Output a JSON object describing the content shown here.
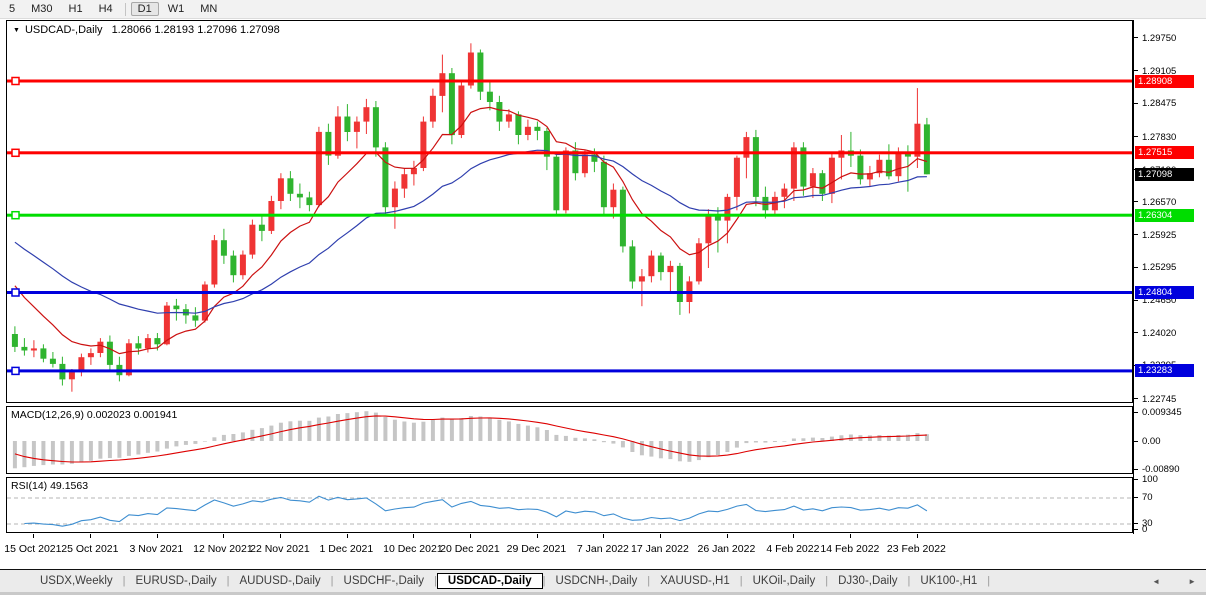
{
  "toolbar": {
    "timeframes": [
      "5",
      "M30",
      "H1",
      "H4",
      "D1",
      "W1",
      "MN"
    ],
    "active": "D1"
  },
  "chart": {
    "title_symbol": "USDCAD-,Daily",
    "title_ohlc": "1.28066 1.28193 1.27096 1.27098",
    "dropdown_icon": "▼"
  },
  "chart_data": {
    "type": "candlestick",
    "symbol": "USDCAD",
    "timeframe": "Daily",
    "candle_bull_color": "#ef3434",
    "candle_bear_color": "#2fb42f",
    "ohlc": [
      [
        1.24,
        1.2415,
        1.2365,
        1.2375
      ],
      [
        1.2375,
        1.2392,
        1.2358,
        1.2368
      ],
      [
        1.2368,
        1.2388,
        1.2355,
        1.2372
      ],
      [
        1.2372,
        1.238,
        1.2345,
        1.2352
      ],
      [
        1.2352,
        1.2365,
        1.2335,
        1.2342
      ],
      [
        1.2342,
        1.2356,
        1.23,
        1.2312
      ],
      [
        1.2312,
        1.2332,
        1.2288,
        1.2326
      ],
      [
        1.2326,
        1.2362,
        1.2318,
        1.2355
      ],
      [
        1.2355,
        1.2372,
        1.234,
        1.2363
      ],
      [
        1.2363,
        1.2392,
        1.2355,
        1.2385
      ],
      [
        1.2385,
        1.2397,
        1.233,
        1.234
      ],
      [
        1.234,
        1.2356,
        1.2308,
        1.232
      ],
      [
        1.232,
        1.239,
        1.2318,
        1.2382
      ],
      [
        1.2382,
        1.2396,
        1.236,
        1.2372
      ],
      [
        1.2372,
        1.24,
        1.2364,
        1.2392
      ],
      [
        1.2392,
        1.2402,
        1.2368,
        1.238
      ],
      [
        1.238,
        1.2462,
        1.2378,
        1.2455
      ],
      [
        1.2455,
        1.2468,
        1.2426,
        1.2448
      ],
      [
        1.2448,
        1.2458,
        1.242,
        1.2436
      ],
      [
        1.2436,
        1.2452,
        1.2414,
        1.2426
      ],
      [
        1.2426,
        1.2502,
        1.2422,
        1.2496
      ],
      [
        1.2496,
        1.2592,
        1.249,
        1.2582
      ],
      [
        1.2582,
        1.2604,
        1.2536,
        1.2552
      ],
      [
        1.2552,
        1.2562,
        1.25,
        1.2514
      ],
      [
        1.2514,
        1.2562,
        1.2506,
        1.2554
      ],
      [
        1.2554,
        1.2622,
        1.2546,
        1.2612
      ],
      [
        1.2612,
        1.2628,
        1.258,
        1.26
      ],
      [
        1.26,
        1.2668,
        1.2594,
        1.2658
      ],
      [
        1.2658,
        1.2712,
        1.2642,
        1.2702
      ],
      [
        1.2702,
        1.2716,
        1.2658,
        1.2672
      ],
      [
        1.2672,
        1.2692,
        1.2644,
        1.2665
      ],
      [
        1.2665,
        1.2676,
        1.2638,
        1.265
      ],
      [
        1.265,
        1.2802,
        1.2646,
        1.2792
      ],
      [
        1.2792,
        1.2808,
        1.2728,
        1.2746
      ],
      [
        1.2746,
        1.2842,
        1.274,
        1.2822
      ],
      [
        1.2822,
        1.2846,
        1.2774,
        1.2792
      ],
      [
        1.2792,
        1.2822,
        1.276,
        1.2812
      ],
      [
        1.2812,
        1.2856,
        1.2788,
        1.284
      ],
      [
        1.284,
        1.2852,
        1.2744,
        1.2762
      ],
      [
        1.2762,
        1.2772,
        1.2628,
        1.2646
      ],
      [
        1.2646,
        1.2696,
        1.2604,
        1.2682
      ],
      [
        1.2682,
        1.2722,
        1.2664,
        1.271
      ],
      [
        1.271,
        1.2736,
        1.2688,
        1.2722
      ],
      [
        1.2722,
        1.2822,
        1.2716,
        1.2812
      ],
      [
        1.2812,
        1.2876,
        1.28,
        1.2862
      ],
      [
        1.2862,
        1.2942,
        1.283,
        1.2906
      ],
      [
        1.2906,
        1.2916,
        1.2768,
        1.2786
      ],
      [
        1.2786,
        1.2892,
        1.278,
        1.2882
      ],
      [
        1.2882,
        1.2964,
        1.2876,
        1.2946
      ],
      [
        1.2946,
        1.2952,
        1.2854,
        1.287
      ],
      [
        1.287,
        1.289,
        1.2834,
        1.285
      ],
      [
        1.285,
        1.2862,
        1.2794,
        1.2812
      ],
      [
        1.2812,
        1.2836,
        1.28,
        1.2826
      ],
      [
        1.2826,
        1.2832,
        1.2768,
        1.2786
      ],
      [
        1.2786,
        1.2816,
        1.2776,
        1.2802
      ],
      [
        1.2802,
        1.2812,
        1.2776,
        1.2794
      ],
      [
        1.2794,
        1.28,
        1.2718,
        1.2744
      ],
      [
        1.2744,
        1.2754,
        1.2628,
        1.264
      ],
      [
        1.264,
        1.2762,
        1.2634,
        1.2756
      ],
      [
        1.2756,
        1.2772,
        1.2698,
        1.2712
      ],
      [
        1.2712,
        1.2756,
        1.2704,
        1.2748
      ],
      [
        1.2748,
        1.276,
        1.2714,
        1.2734
      ],
      [
        1.2734,
        1.2746,
        1.2628,
        1.2646
      ],
      [
        1.2646,
        1.2692,
        1.2624,
        1.268
      ],
      [
        1.268,
        1.2686,
        1.2558,
        1.257
      ],
      [
        1.257,
        1.2582,
        1.2488,
        1.2502
      ],
      [
        1.2502,
        1.2526,
        1.2454,
        1.2512
      ],
      [
        1.2512,
        1.2562,
        1.25,
        1.2552
      ],
      [
        1.2552,
        1.2558,
        1.2504,
        1.252
      ],
      [
        1.252,
        1.2542,
        1.2478,
        1.2532
      ],
      [
        1.2532,
        1.2538,
        1.2437,
        1.2462
      ],
      [
        1.2462,
        1.2512,
        1.244,
        1.2502
      ],
      [
        1.2502,
        1.2586,
        1.2496,
        1.2576
      ],
      [
        1.2576,
        1.2642,
        1.2528,
        1.2632
      ],
      [
        1.2632,
        1.2646,
        1.2558,
        1.262
      ],
      [
        1.262,
        1.2672,
        1.2576,
        1.2666
      ],
      [
        1.2666,
        1.2746,
        1.264,
        1.2742
      ],
      [
        1.2742,
        1.2792,
        1.2702,
        1.2782
      ],
      [
        1.2782,
        1.2796,
        1.2648,
        1.2666
      ],
      [
        1.2666,
        1.2686,
        1.2624,
        1.264
      ],
      [
        1.264,
        1.2676,
        1.263,
        1.2666
      ],
      [
        1.2666,
        1.2692,
        1.2644,
        1.2682
      ],
      [
        1.2682,
        1.2772,
        1.2658,
        1.2762
      ],
      [
        1.2762,
        1.2772,
        1.2668,
        1.2686
      ],
      [
        1.2686,
        1.2722,
        1.2664,
        1.2712
      ],
      [
        1.2712,
        1.2718,
        1.2658,
        1.2672
      ],
      [
        1.2672,
        1.2752,
        1.2654,
        1.2742
      ],
      [
        1.2742,
        1.2786,
        1.27,
        1.2756
      ],
      [
        1.2756,
        1.2792,
        1.2724,
        1.2746
      ],
      [
        1.2746,
        1.2758,
        1.269,
        1.27
      ],
      [
        1.27,
        1.2726,
        1.2686,
        1.2712
      ],
      [
        1.2712,
        1.2748,
        1.2704,
        1.2738
      ],
      [
        1.2738,
        1.2768,
        1.27,
        1.2706
      ],
      [
        1.2706,
        1.2762,
        1.2696,
        1.2752
      ],
      [
        1.2752,
        1.2766,
        1.2676,
        1.2744
      ],
      [
        1.2744,
        1.2877,
        1.2722,
        1.2808
      ],
      [
        1.28066,
        1.28193,
        1.27096,
        1.27098
      ]
    ],
    "x_tick_labels": [
      "15 Oct 2021",
      "25 Oct 2021",
      "3 Nov 2021",
      "12 Nov 2021",
      "22 Nov 2021",
      "1 Dec 2021",
      "10 Dec 2021",
      "20 Dec 2021",
      "29 Dec 2021",
      "7 Jan 2022",
      "17 Jan 2022",
      "26 Jan 2022",
      "4 Feb 2022",
      "14 Feb 2022",
      "23 Feb 2022"
    ],
    "x_tick_indices": [
      2,
      8,
      15,
      22,
      28,
      35,
      42,
      48,
      55,
      62,
      68,
      75,
      82,
      88,
      95
    ],
    "price_axis_ticks": [
      "1.29750",
      "1.29105",
      "1.28475",
      "1.27830",
      "1.27190",
      "1.26570",
      "1.25925",
      "1.25295",
      "1.24650",
      "1.24020",
      "1.23395",
      "1.22745"
    ],
    "h_lines": [
      {
        "price": 1.28908,
        "color": "#fe0000"
      },
      {
        "price": 1.27515,
        "color": "#fe0000"
      },
      {
        "price": 1.26304,
        "color": "#00dd00"
      },
      {
        "price": 1.24804,
        "color": "#0000dd"
      },
      {
        "price": 1.23283,
        "color": "#0000dd"
      }
    ],
    "current_price": 1.27098,
    "current_price_color": "#000000",
    "moving_averages": [
      {
        "period": 10,
        "seed": 1.252,
        "color": "#cc1111"
      },
      {
        "period": 30,
        "seed": 1.2592,
        "color": "#2f3fae"
      }
    ],
    "macd": {
      "label": "MACD(12,26,9) 0.002023 0.001941",
      "params": [
        12,
        26,
        9
      ],
      "value": 0.002023,
      "signal_value": 0.001941,
      "axis_labels": [
        {
          "v": 0.009345,
          "t": "0.009345"
        },
        {
          "v": 0,
          "t": "0.00"
        },
        {
          "v": -0.0089,
          "t": "-0.00890"
        }
      ],
      "hist_color": "#c6c6c6",
      "signal_color": "#dd0000",
      "seeds": {
        "ema_fast": 1.241,
        "ema_slow": 1.2502,
        "signal": -0.003
      }
    },
    "rsi": {
      "label": "RSI(14) 49.1563",
      "period": 14,
      "value": 49.1563,
      "axis_labels": [
        100,
        70,
        30,
        0
      ],
      "levels": [
        70,
        30
      ],
      "color": "#3e8ed0",
      "seeds": {
        "avg_gain": 0.001,
        "avg_loss": 0.0022
      }
    }
  },
  "tabs": {
    "items": [
      "USDX,Weekly",
      "EURUSD-,Daily",
      "AUDUSD-,Daily",
      "USDCHF-,Daily",
      "USDCAD-,Daily",
      "USDCNH-,Daily",
      "XAUUSD-,H1",
      "UKOil-,Daily",
      "DJ30-,Daily",
      "UK100-,H1"
    ],
    "active_index": 4,
    "left_arrow": "◄",
    "right_arrow": "►"
  }
}
